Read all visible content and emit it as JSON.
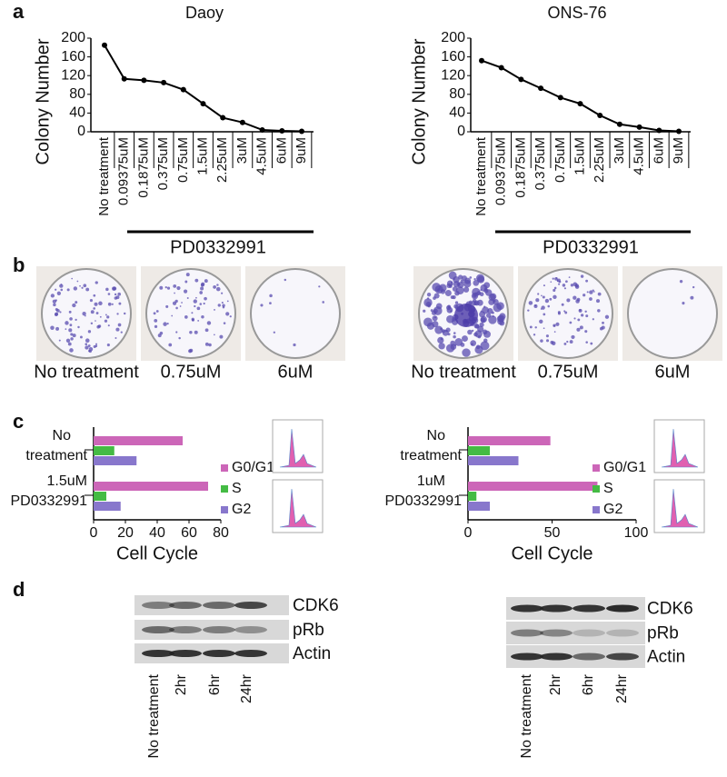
{
  "panel_labels": [
    "a",
    "b",
    "c",
    "d"
  ],
  "chart_data": [
    {
      "type": "line",
      "title": "Daoy",
      "y_label": "Colony Number",
      "x_label": "PD0332991",
      "categories": [
        "No treatment",
        "0.09375uM",
        "0.1875uM",
        "0.375uM",
        "0.75uM",
        "1.5uM",
        "2.25uM",
        "3uM",
        "4.5uM",
        "6uM",
        "9uM"
      ],
      "values": [
        185,
        113,
        110,
        105,
        90,
        60,
        30,
        20,
        4,
        2,
        1
      ],
      "color": "#000000",
      "ylim": [
        0,
        200
      ],
      "yticks": [
        0,
        40,
        80,
        120,
        160,
        200
      ]
    },
    {
      "type": "line",
      "title": "ONS-76",
      "y_label": "Colony Number",
      "x_label": "PD0332991",
      "categories": [
        "No treatment",
        "0.09375uM",
        "0.1875uM",
        "0.375uM",
        "0.75uM",
        "1.5uM",
        "2.25uM",
        "3uM",
        "4.5uM",
        "6uM",
        "9uM"
      ],
      "values": [
        152,
        137,
        112,
        93,
        73,
        60,
        35,
        16,
        10,
        3,
        1
      ],
      "color": "#000000",
      "ylim": [
        0,
        200
      ],
      "yticks": [
        0,
        40,
        80,
        120,
        160,
        200
      ]
    },
    {
      "type": "bar",
      "orientation": "horizontal",
      "x_label": "Cell Cycle",
      "categories": [
        "No treatment",
        "1.5uM PD0332991"
      ],
      "series": [
        {
          "name": "G0/G1",
          "color": "#cc66b8",
          "values": [
            56,
            72
          ]
        },
        {
          "name": "S",
          "color": "#44bb44",
          "values": [
            13,
            8
          ]
        },
        {
          "name": "G2",
          "color": "#8877cc",
          "values": [
            27,
            17
          ]
        }
      ],
      "xlim": [
        0,
        80
      ],
      "xticks": [
        0,
        20,
        40,
        60,
        80
      ],
      "legend": "right"
    },
    {
      "type": "bar",
      "orientation": "horizontal",
      "x_label": "Cell Cycle",
      "categories": [
        "No treatment",
        "1uM PD0332991"
      ],
      "series": [
        {
          "name": "G0/G1",
          "color": "#cc66b8",
          "values": [
            49,
            77
          ]
        },
        {
          "name": "S",
          "color": "#44bb44",
          "values": [
            13,
            5
          ]
        },
        {
          "name": "G2",
          "color": "#8877cc",
          "values": [
            30,
            13
          ]
        }
      ],
      "xlim": [
        0,
        100
      ],
      "xticks": [
        0,
        50,
        100
      ],
      "legend": "right"
    }
  ],
  "plates": [
    [
      "No treatment",
      "0.75uM",
      "6uM"
    ],
    [
      "No treatment",
      "0.75uM",
      "6uM"
    ]
  ],
  "blots": [
    {
      "proteins": [
        "CDK6",
        "pRb",
        "Actin"
      ],
      "lanes": [
        "No treatment",
        "2hr",
        "6hr",
        "24hr"
      ]
    },
    {
      "proteins": [
        "CDK6",
        "pRb",
        "Actin"
      ],
      "lanes": [
        "No treatment",
        "2hr",
        "6hr",
        "24hr"
      ]
    }
  ]
}
